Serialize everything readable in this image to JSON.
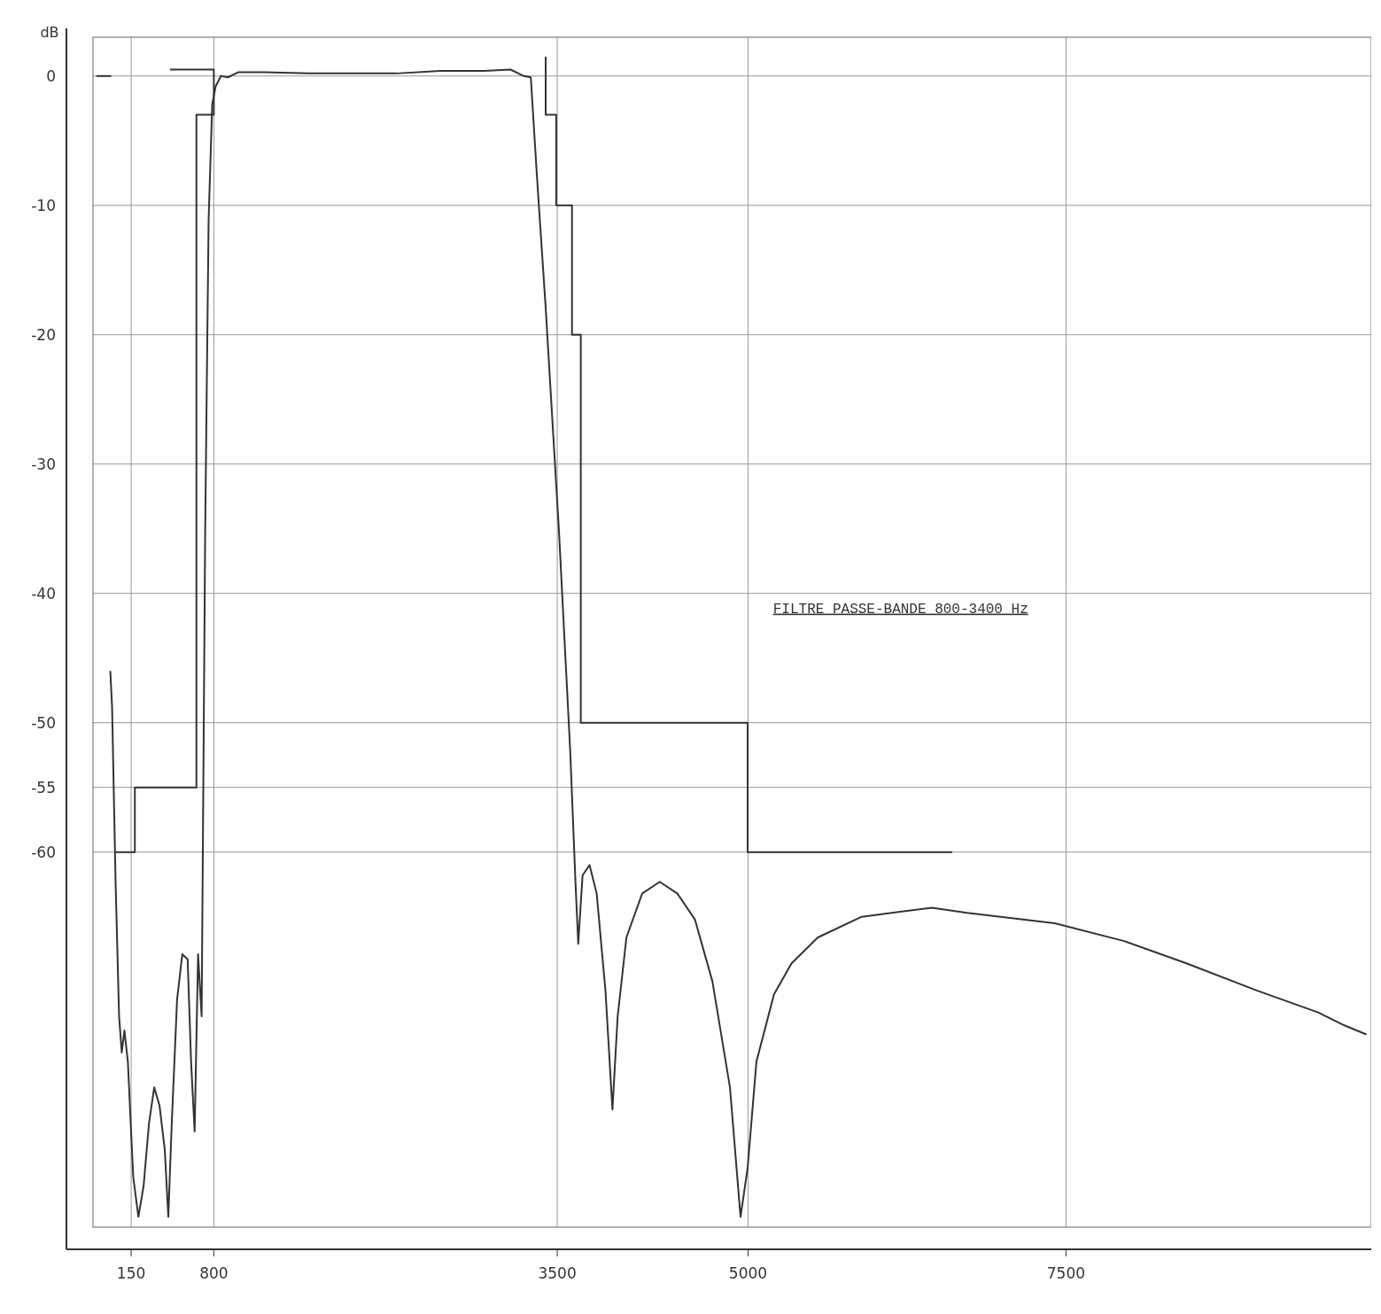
{
  "chart_data": {
    "type": "line",
    "ylabel": "dB",
    "annotations": [
      "FILTRE PASSE-BANDE 800-3400 Hz"
    ],
    "xlim": [
      -150,
      9900
    ],
    "ylim": [
      -89,
      3
    ],
    "xticks": [
      150,
      800,
      3500,
      5000,
      7500
    ],
    "yticks": [
      0,
      -10,
      -20,
      -30,
      -40,
      -50,
      -55,
      -60
    ],
    "grid": true,
    "marker": "none",
    "line_style": "solid",
    "series": [
      {
        "color": "#333333",
        "x": [
          -124,
          -7
        ],
        "values": [
          0,
          0
        ]
      },
      {
        "color": "#333333",
        "x": [
          -14,
          0,
          28,
          55,
          76,
          97,
          124,
          166,
          207,
          248,
          290,
          331,
          373,
          414,
          442,
          469,
          511,
          552,
          594,
          621,
          649,
          676,
          704,
          732,
          759,
          787,
          814,
          856,
          911,
          994,
          1201,
          1546,
          2236,
          2581,
          2926,
          3133,
          3237,
          3292,
          3340,
          3409,
          3513,
          3602,
          3644,
          3665,
          3699,
          3754,
          3810,
          3879,
          3934,
          3975,
          4044,
          4168,
          4306,
          4444,
          4582,
          4720,
          4858,
          4941,
          4997,
          5066,
          5204,
          5342,
          5549,
          5894,
          6446,
          6722,
          7412,
          7964,
          8447,
          9000,
          9482,
          9689,
          9862
        ],
        "values": [
          -46,
          -48.8,
          -62.5,
          -72.7,
          -75.5,
          -73.8,
          -76.2,
          -85.1,
          -88.2,
          -85.8,
          -81,
          -78.2,
          -79.6,
          -83,
          -88.2,
          -81,
          -71.4,
          -67.9,
          -68.3,
          -76.2,
          -81.6,
          -67.9,
          -72.7,
          -35.1,
          -11.1,
          -2.2,
          -0.8,
          0,
          -0.1,
          0.3,
          0.3,
          0.2,
          0.2,
          0.4,
          0.4,
          0.5,
          0,
          -0.1,
          -7.7,
          -17.9,
          -35.1,
          -52.2,
          -62.5,
          -67.1,
          -61.8,
          -61,
          -63.2,
          -70.7,
          -79.9,
          -72.7,
          -66.6,
          -63.2,
          -62.3,
          -63.2,
          -65.2,
          -70,
          -78.2,
          -88.2,
          -84.4,
          -76.2,
          -71,
          -68.6,
          -66.6,
          -65,
          -64.3,
          -64.7,
          -65.5,
          -66.9,
          -68.6,
          -70.7,
          -72.4,
          -73.4,
          -74.1
        ]
      },
      {
        "color": "#333333",
        "x": [
          28,
          179,
          179,
          663,
          663,
          800,
          800,
          455
        ],
        "values": [
          -60,
          -60,
          -55,
          -55,
          -3,
          -3,
          0.5,
          0.5
        ]
      },
      {
        "color": "#333333",
        "x": [
          3409,
          3409,
          3492,
          3492,
          3616,
          3616,
          3685,
          3685,
          4997,
          4997,
          6605
        ],
        "values": [
          1.5,
          -3,
          -3,
          -10,
          -10,
          -20,
          -20,
          -50,
          -50,
          -60,
          -60
        ]
      }
    ]
  }
}
